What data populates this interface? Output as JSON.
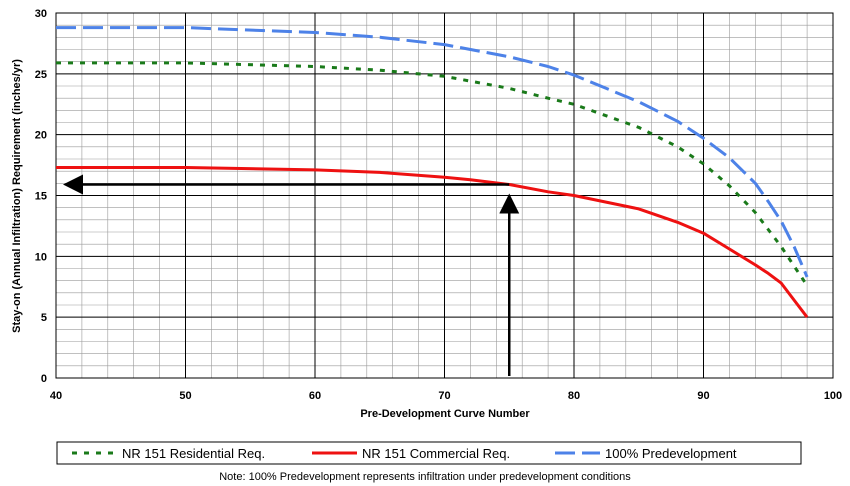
{
  "chart_data": {
    "type": "line",
    "xlabel": "Pre-Development Curve Number",
    "ylabel": "Stay-on (Annual Infiltration) Requirement (inches/yr)",
    "xlim": [
      40,
      100
    ],
    "ylim": [
      0,
      30
    ],
    "x_ticks": [
      40,
      50,
      60,
      70,
      80,
      90,
      100
    ],
    "y_ticks": [
      0,
      5,
      10,
      15,
      20,
      25,
      30
    ],
    "x_tick_labels": [
      "40",
      "50",
      "60",
      "70",
      "80",
      "90",
      "100"
    ],
    "y_tick_labels": [
      "0",
      "5",
      "10",
      "15",
      "20",
      "25",
      "30"
    ],
    "grid": true,
    "legend_position": "bottom",
    "series": [
      {
        "name": "NR 151 Residential Req.",
        "color": "#1a7a1a",
        "style": "dotted",
        "x": [
          40,
          50,
          60,
          65,
          70,
          75,
          78,
          80,
          85,
          88,
          90,
          92,
          94,
          95,
          96,
          97,
          98
        ],
        "y": [
          25.9,
          25.9,
          25.6,
          25.3,
          24.8,
          23.8,
          23.0,
          22.5,
          20.6,
          19.0,
          17.6,
          15.8,
          13.6,
          12.2,
          10.8,
          9.2,
          7.6
        ]
      },
      {
        "name": "NR 151 Commercial Req.",
        "color": "#ee1111",
        "style": "solid",
        "x": [
          40,
          50,
          60,
          65,
          70,
          72,
          75,
          78,
          80,
          85,
          88,
          90,
          92,
          94,
          95,
          96,
          97,
          98
        ],
        "y": [
          17.3,
          17.3,
          17.1,
          16.9,
          16.5,
          16.3,
          15.9,
          15.3,
          15.0,
          13.9,
          12.8,
          11.9,
          10.6,
          9.3,
          8.6,
          7.8,
          6.4,
          5.0
        ]
      },
      {
        "name": "100% Predevelopment",
        "color": "#4d82e8",
        "style": "dashed",
        "x": [
          40,
          50,
          60,
          65,
          70,
          75,
          78,
          80,
          85,
          88,
          90,
          92,
          94,
          95,
          96,
          97,
          98
        ],
        "y": [
          28.8,
          28.8,
          28.4,
          28.0,
          27.4,
          26.4,
          25.6,
          24.9,
          22.7,
          21.1,
          19.7,
          18.1,
          16.0,
          14.5,
          12.9,
          10.8,
          8.3
        ]
      }
    ],
    "annotation": {
      "arrow_x": 75,
      "arrow_y": 15.9
    },
    "note": "Note: 100% Predevelopment represents infiltration under predevelopment conditions"
  }
}
